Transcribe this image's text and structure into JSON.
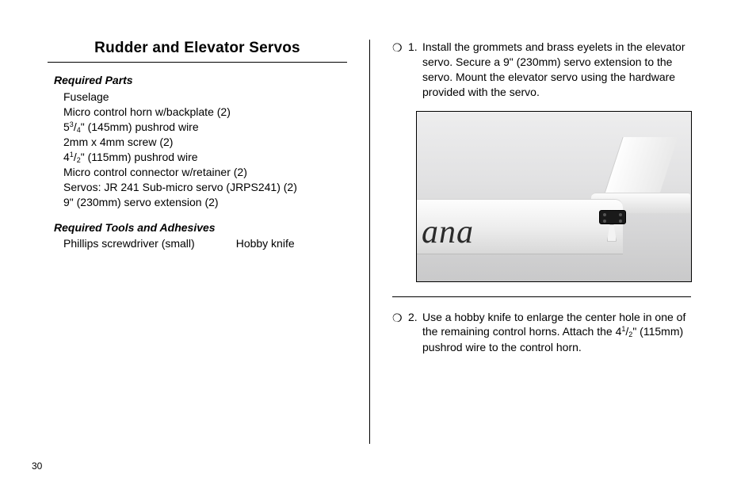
{
  "page_number": "30",
  "section_title": "Rudder and Elevator Servos",
  "required_parts_heading": "Required Parts",
  "required_parts": [
    "Fuselage",
    "Micro control horn w/backplate (2)",
    "5³/₄\" (145mm) pushrod wire",
    "2mm x 4mm screw (2)",
    "4¹/₂\" (115mm) pushrod wire",
    "Micro control connector w/retainer (2)",
    "Servos: JR 241 Sub-micro servo (JRPS241) (2)",
    "9\" (230mm) servo extension (2)"
  ],
  "required_tools_heading": "Required Tools and Adhesives",
  "tools": {
    "a": "Phillips screwdriver (small)",
    "b": "Hobby knife"
  },
  "steps": [
    {
      "num": "1.",
      "text": "Install the grommets and brass eyelets in the elevator servo. Secure a 9\" (230mm) servo extension to the servo. Mount the elevator servo using the hardware provided with the servo."
    },
    {
      "num": "2.",
      "text": "Use a hobby knife to enlarge the center hole in one of the remaining control horns. Attach the 4¹/₂\" (115mm) pushrod wire to the control horn."
    }
  ],
  "photo_marking": "ana",
  "parts_fraction_lines": {
    "2": {
      "whole": "5",
      "num": "3",
      "den": "4",
      "rest": "\" (145mm) pushrod wire"
    },
    "4": {
      "whole": "4",
      "num": "1",
      "den": "2",
      "rest": "\" (115mm) pushrod wire"
    }
  },
  "step2_fraction": {
    "whole": "4",
    "num": "1",
    "den": "2",
    "rest": "\" (115mm) pushrod wire to the control horn."
  },
  "colors": {
    "text": "#000000",
    "bg": "#ffffff",
    "rule": "#000000"
  }
}
